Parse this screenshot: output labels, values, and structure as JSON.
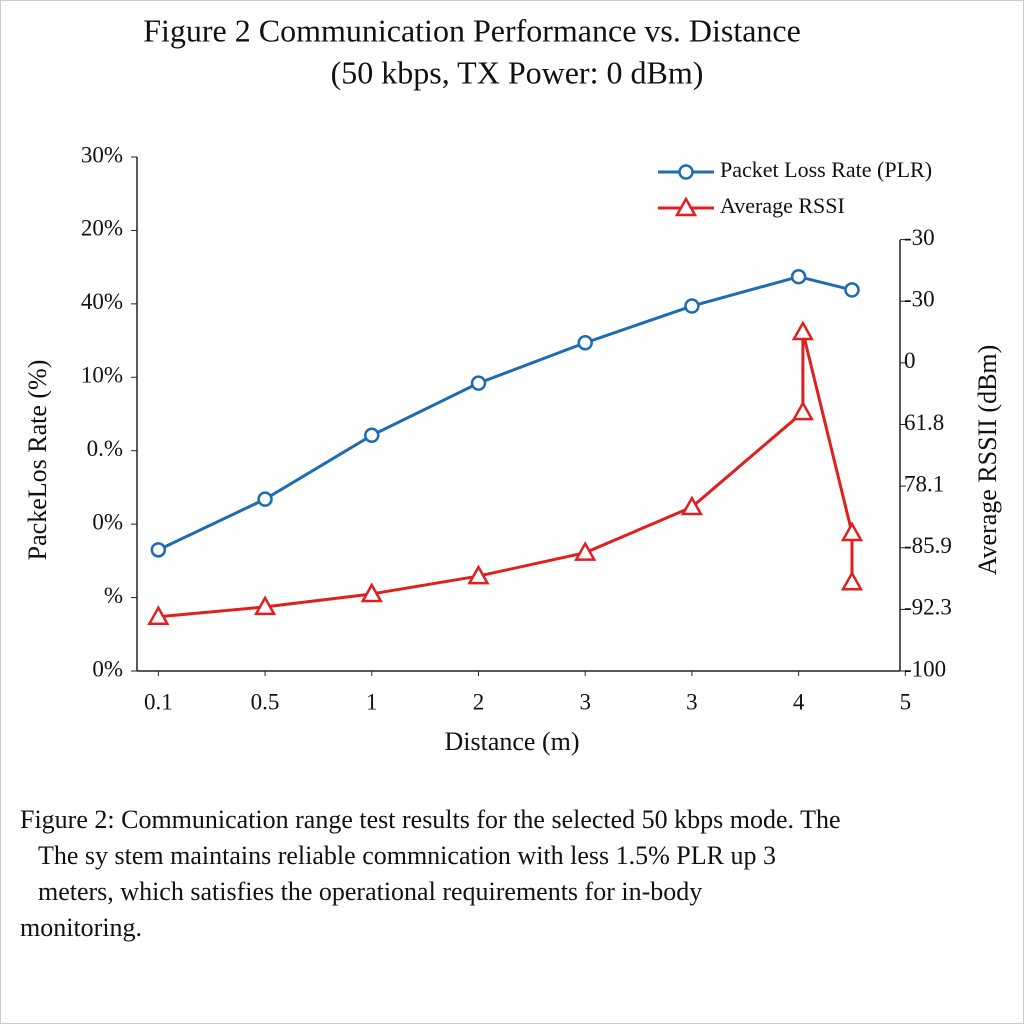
{
  "chart_data": {
    "type": "line",
    "title": "Figure 2 Communication Performance vs. Distance",
    "subtitle": "(50 kbps, TX Power: 0 dBm)",
    "x_label": "Distance (m)",
    "y_label": "PackeLos Rate (%)",
    "y2_label": "Average RSSII (dBm)",
    "xlim": [
      -0.2,
      6.95
    ],
    "xticks": [
      {
        "value": 0,
        "label": "0.1"
      },
      {
        "value": 1,
        "label": "0.5"
      },
      {
        "value": 2,
        "label": "1"
      },
      {
        "value": 3,
        "label": "2"
      },
      {
        "value": 4,
        "label": "3"
      },
      {
        "value": 5,
        "label": "3"
      },
      {
        "value": 6,
        "label": "4"
      },
      {
        "value": 7,
        "label": "5"
      }
    ],
    "ylim": [
      0,
      7
    ],
    "yticks": [
      {
        "value": 0,
        "label": "0%"
      },
      {
        "value": 1,
        "label": "%"
      },
      {
        "value": 2,
        "label": "0%"
      },
      {
        "value": 3,
        "label": "0.%"
      },
      {
        "value": 4,
        "label": "10%"
      },
      {
        "value": 5,
        "label": "40%"
      },
      {
        "value": 6,
        "label": "20%"
      },
      {
        "value": 7,
        "label": "30%"
      }
    ],
    "y2lim": [
      0,
      8.34
    ],
    "y2ticks": [
      {
        "value": 0,
        "label": "-100"
      },
      {
        "value": 1,
        "label": "-92.3"
      },
      {
        "value": 2,
        "label": "-85.9"
      },
      {
        "value": 3,
        "label": "78.1"
      },
      {
        "value": 4,
        "label": "61.8"
      },
      {
        "value": 5,
        "label": "0"
      },
      {
        "value": 6,
        "label": "-30"
      },
      {
        "value": 7,
        "label": "-30"
      }
    ],
    "legend": "upper right",
    "series": [
      {
        "name": "Packet Loss Rate (PLR)",
        "color": "#1f6db0",
        "marker": "circle",
        "x": [
          0,
          1,
          2,
          3,
          4,
          5,
          6,
          6.5
        ],
        "values": [
          1.65,
          2.34,
          3.21,
          3.92,
          4.47,
          4.97,
          5.37,
          5.19
        ]
      },
      {
        "name": "Average RSSI",
        "color": "#e01f1f",
        "marker": "triangle",
        "axis": "y2",
        "x": [
          0,
          1,
          2,
          3,
          4,
          5,
          6.04,
          6.04,
          6.5,
          6.5
        ],
        "values": [
          0.88,
          1.04,
          1.25,
          1.54,
          1.92,
          2.66,
          4.2,
          5.5,
          2.24,
          1.44
        ]
      }
    ]
  },
  "caption": [
    "Figure 2: Communication range test results for the selected 50 kbps mode. The",
    "The sy stem maintains reliable commnication with less 1.5% PLR up 3",
    "meters, which satisfies the operational requirements for in-body",
    "monitoring."
  ]
}
